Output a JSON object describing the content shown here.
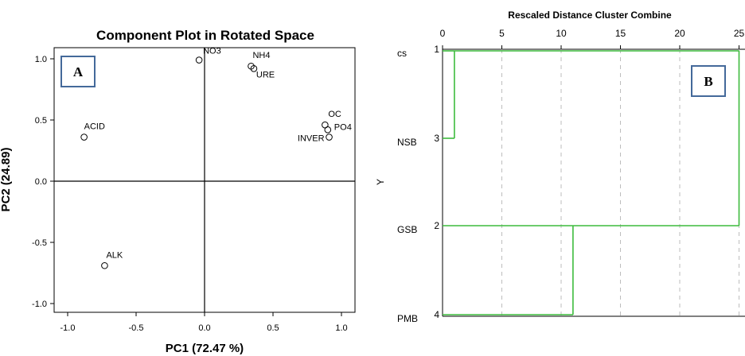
{
  "chart_data": [
    {
      "type": "scatter",
      "title": "Component Plot in Rotated Space",
      "xlabel": "PC1 (72.47 %)",
      "ylabel": "PC2 (24.89)",
      "xlim": [
        -1.1,
        1.1
      ],
      "ylim": [
        -1.1,
        1.1
      ],
      "x_ticks": [
        "-1.0",
        "-0.5",
        "0.0",
        "0.5",
        "1.0"
      ],
      "y_ticks": [
        "1.0",
        "0.5",
        "0.0",
        "-0.5",
        "-1.0"
      ],
      "badge": "A",
      "points": [
        {
          "label": "NO3",
          "x": -0.04,
          "y": 0.99
        },
        {
          "label": "NH4",
          "x": 0.34,
          "y": 0.94
        },
        {
          "label": "URE",
          "x": 0.36,
          "y": 0.92
        },
        {
          "label": "OC",
          "x": 0.88,
          "y": 0.46
        },
        {
          "label": "PO4",
          "x": 0.9,
          "y": 0.42
        },
        {
          "label": "INVER",
          "x": 0.91,
          "y": 0.36
        },
        {
          "label": "ACID",
          "x": -0.88,
          "y": 0.36
        },
        {
          "label": "ALK",
          "x": -0.73,
          "y": -0.69
        }
      ]
    },
    {
      "type": "dendrogram",
      "title": "Rescaled Distance Cluster Combine",
      "ylabel": "Y",
      "x_ticks": [
        "0",
        "5",
        "10",
        "15",
        "20",
        "25"
      ],
      "xlim": [
        0,
        25
      ],
      "badge": "B",
      "cases": [
        {
          "label": "cs",
          "number": "1"
        },
        {
          "label": "NSB",
          "number": "3"
        },
        {
          "label": "GSB",
          "number": "2"
        },
        {
          "label": "PMB",
          "number": "4"
        }
      ],
      "merges": [
        {
          "between": [
            "cs",
            "NSB"
          ],
          "distance": 1
        },
        {
          "between": [
            "GSB",
            "PMB"
          ],
          "distance": 11
        },
        {
          "between": [
            "cs-NSB",
            "GSB-PMB"
          ],
          "distance": 25
        }
      ]
    }
  ]
}
